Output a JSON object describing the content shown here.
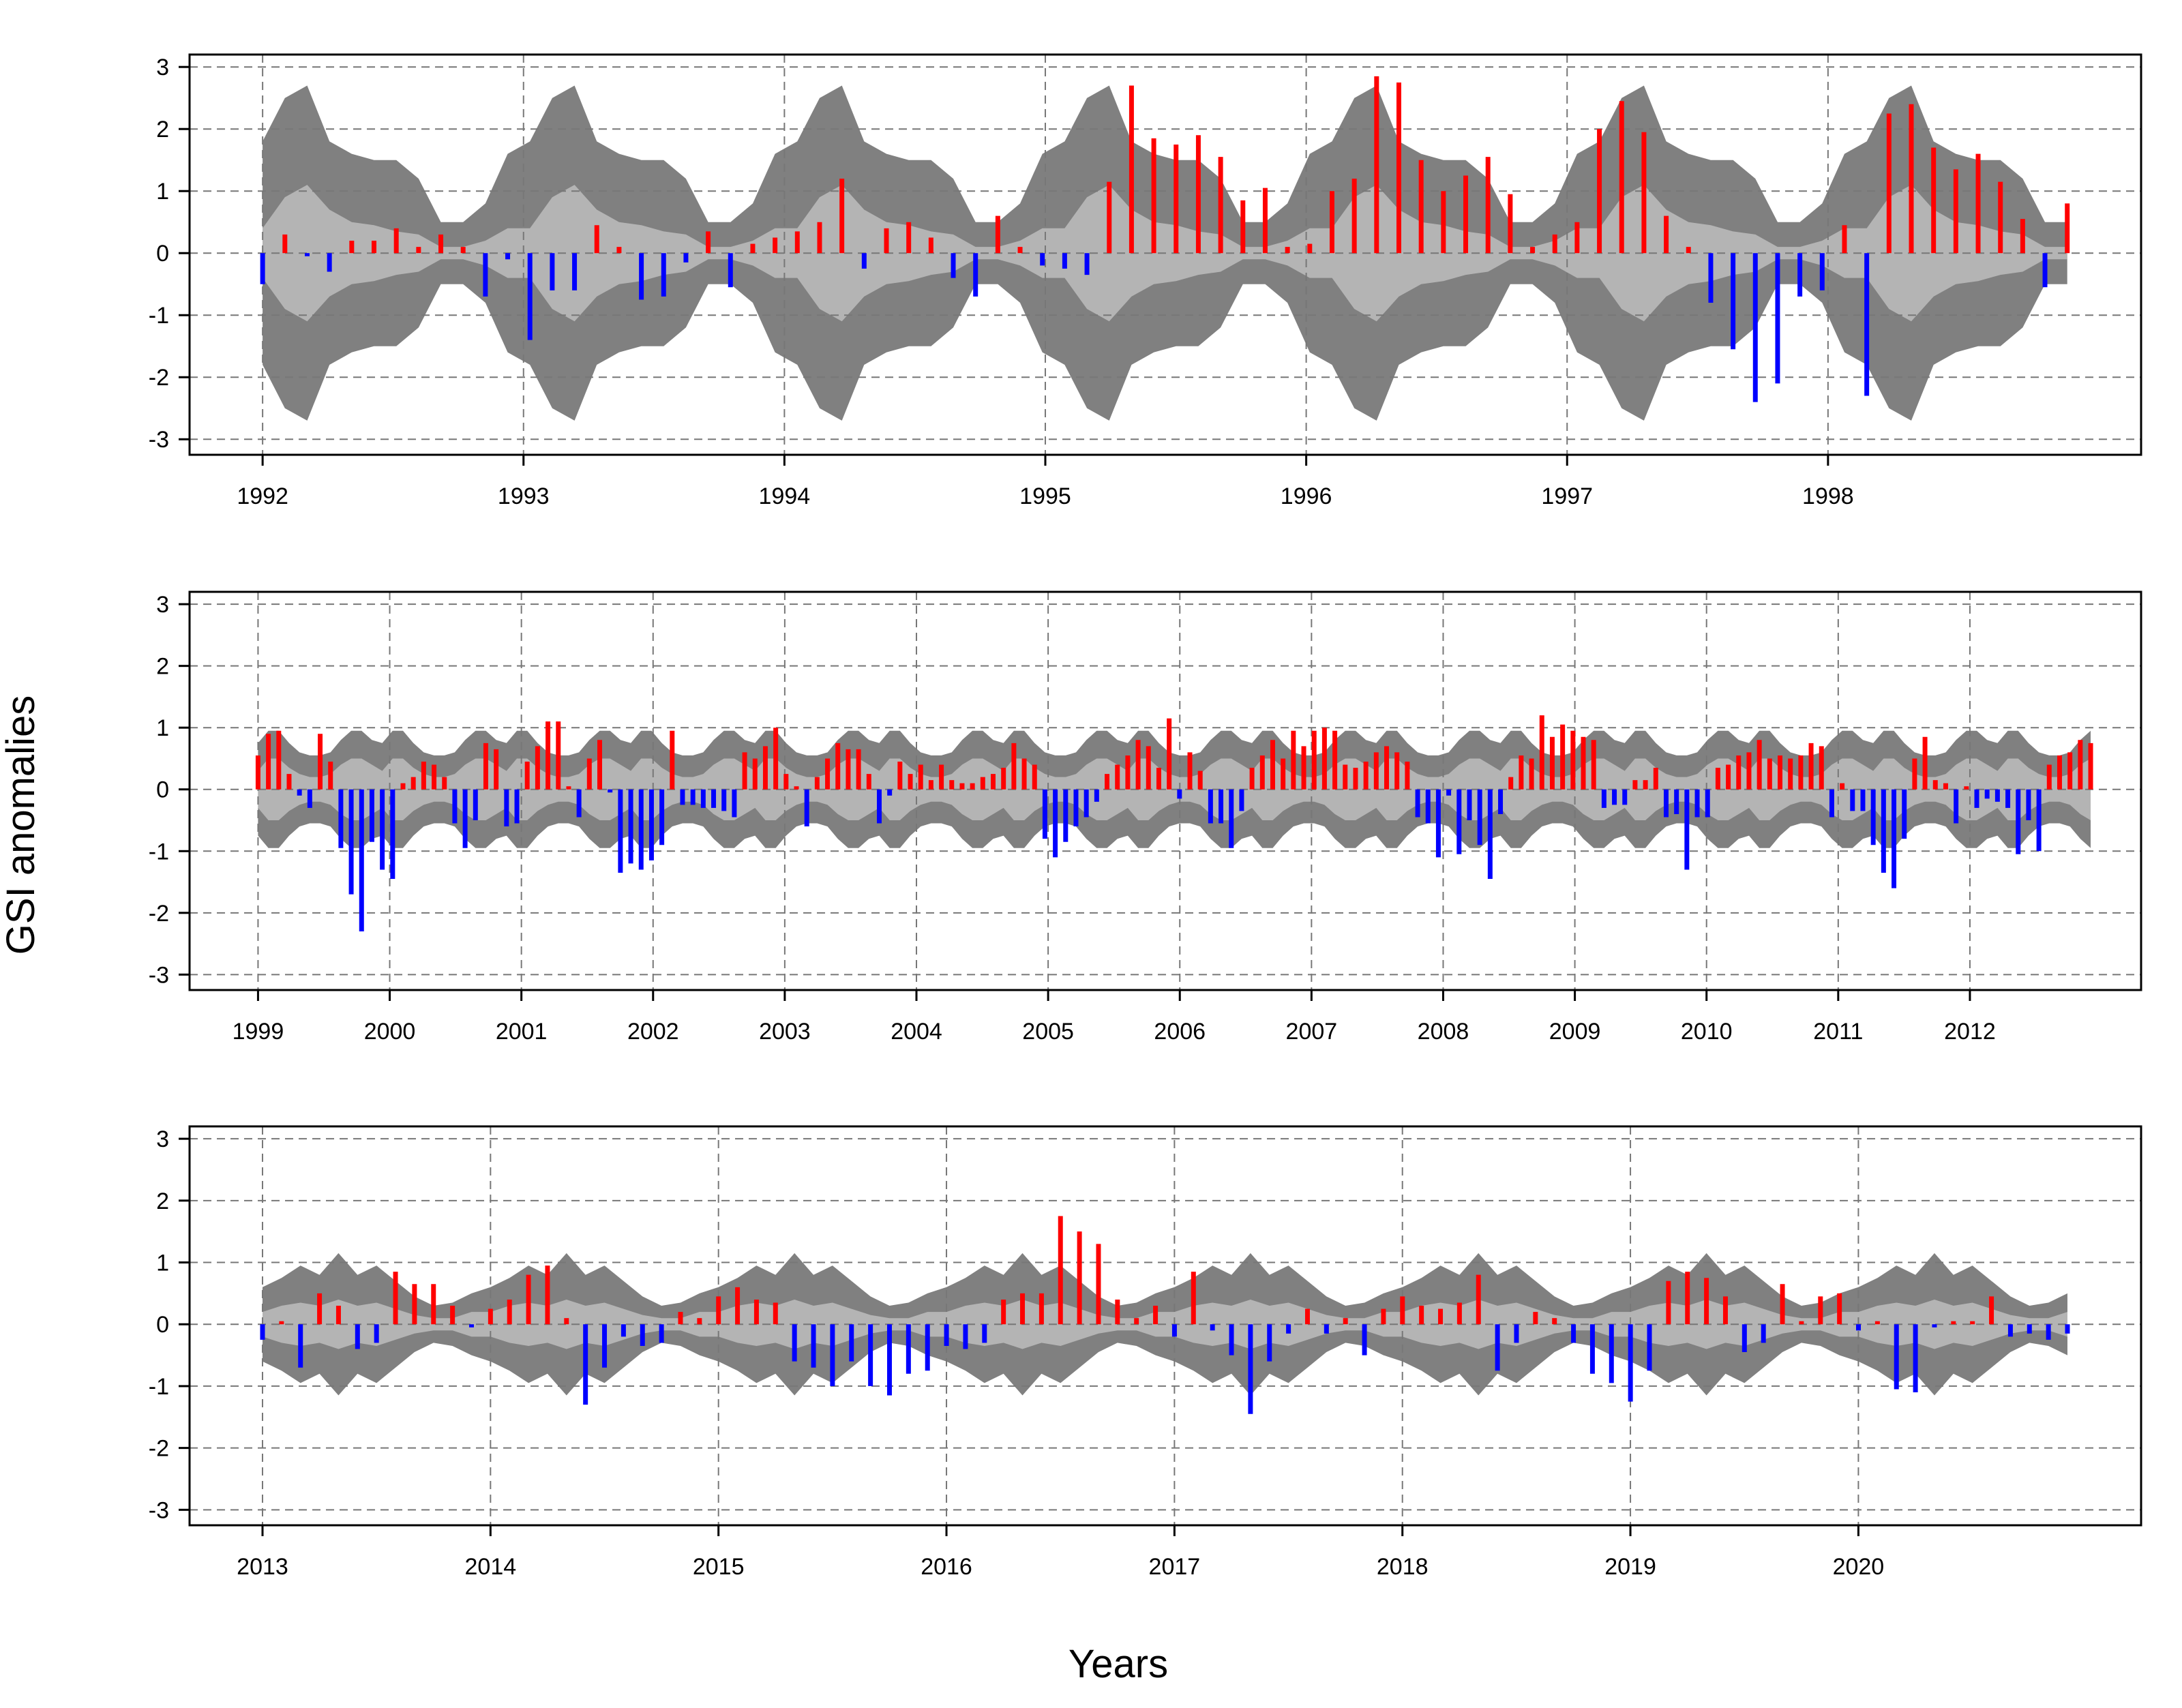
{
  "figure": {
    "ylabel": "GSI anomalies",
    "xlabel": "Years"
  },
  "colors": {
    "positive": "#ff0000",
    "negative": "#0000ff",
    "outer_band": "#808080",
    "inner_band": "#b4b4b4",
    "grid": "#777777"
  },
  "chart_data": [
    {
      "type": "bar",
      "x_start": 1992,
      "x_end": 1998.917,
      "xlim": [
        1991.72,
        1999.2
      ],
      "ylim": [
        -3.25,
        3.2
      ],
      "yticks": [
        -3,
        -2,
        -1,
        0,
        1,
        2,
        3
      ],
      "xticks": [
        1992,
        1993,
        1994,
        1995,
        1996,
        1997,
        1998
      ],
      "grid": true,
      "band_outer": [
        1.8,
        2.5,
        2.7,
        1.8,
        1.6,
        1.5,
        1.5,
        1.2,
        0.5,
        0.5,
        0.8,
        1.6,
        1.8,
        2.5,
        2.7,
        1.8,
        1.6,
        1.5,
        1.5,
        1.2,
        0.5,
        0.5,
        0.8,
        1.6,
        1.8,
        2.5,
        2.7,
        1.8,
        1.6,
        1.5,
        1.5,
        1.2,
        0.5,
        0.5,
        0.8,
        1.6,
        1.8,
        2.5,
        2.7,
        1.8,
        1.6,
        1.5,
        1.5,
        1.2,
        0.5,
        0.5,
        0.8,
        1.6,
        1.8,
        2.5,
        2.7,
        1.8,
        1.6,
        1.5,
        1.5,
        1.2,
        0.5,
        0.5,
        0.8,
        1.6,
        1.8,
        2.5,
        2.7,
        1.8,
        1.6,
        1.5,
        1.5,
        1.2,
        0.5,
        0.5,
        0.8,
        1.6,
        1.8,
        2.5,
        2.7,
        1.8,
        1.6,
        1.5,
        1.5,
        1.2,
        0.5,
        0.5,
        0.8
      ],
      "band_inner": [
        0.4,
        0.9,
        1.1,
        0.7,
        0.5,
        0.45,
        0.35,
        0.3,
        0.1,
        0.1,
        0.2,
        0.4,
        0.4,
        0.9,
        1.1,
        0.7,
        0.5,
        0.45,
        0.35,
        0.3,
        0.1,
        0.1,
        0.2,
        0.4,
        0.4,
        0.9,
        1.1,
        0.7,
        0.5,
        0.45,
        0.35,
        0.3,
        0.1,
        0.1,
        0.2,
        0.4,
        0.4,
        0.9,
        1.1,
        0.7,
        0.5,
        0.45,
        0.35,
        0.3,
        0.1,
        0.1,
        0.2,
        0.4,
        0.4,
        0.9,
        1.1,
        0.7,
        0.5,
        0.45,
        0.35,
        0.3,
        0.1,
        0.1,
        0.2,
        0.4,
        0.4,
        0.9,
        1.1,
        0.7,
        0.5,
        0.45,
        0.35,
        0.3,
        0.1,
        0.1,
        0.2,
        0.4,
        0.4,
        0.9,
        1.1,
        0.7,
        0.5,
        0.45,
        0.35,
        0.3,
        0.1,
        0.1,
        0.2
      ],
      "values": [
        -0.5,
        0.3,
        -0.05,
        -0.3,
        0.2,
        0.2,
        0.4,
        0.1,
        0.3,
        0.1,
        -0.7,
        -0.1,
        -1.4,
        -0.6,
        -0.6,
        0.45,
        0.1,
        -0.75,
        -0.7,
        -0.15,
        0.35,
        -0.55,
        0.15,
        0.25,
        0.35,
        0.5,
        1.2,
        -0.25,
        0.4,
        0.5,
        0.25,
        -0.4,
        -0.7,
        0.6,
        0.1,
        -0.2,
        -0.25,
        -0.35,
        1.15,
        2.7,
        1.85,
        1.75,
        1.9,
        1.55,
        0.85,
        1.05,
        0.1,
        0.15,
        1.0,
        1.2,
        2.85,
        2.75,
        1.5,
        1.0,
        1.25,
        1.55,
        0.95,
        0.1,
        0.3,
        0.5,
        2.0,
        2.45,
        1.95,
        0.6,
        0.1,
        -0.8,
        -1.55,
        -2.4,
        -2.1,
        -0.7,
        -0.6,
        0.45,
        -2.3,
        2.25,
        2.4,
        1.7,
        1.35,
        1.6,
        1.15,
        0.55,
        -0.55,
        0.8
      ]
    },
    {
      "type": "bar",
      "x_start": 1999,
      "x_end": 2012.917,
      "xlim": [
        1998.48,
        2013.3
      ],
      "ylim": [
        -3.25,
        3.2
      ],
      "yticks": [
        -3,
        -2,
        -1,
        0,
        1,
        2,
        3
      ],
      "xticks": [
        1999,
        2000,
        2001,
        2002,
        2003,
        2004,
        2005,
        2006,
        2007,
        2008,
        2009,
        2010,
        2011,
        2012
      ],
      "grid": true,
      "band_outer": [
        0.75,
        0.95,
        0.95,
        0.75,
        0.6,
        0.55,
        0.55,
        0.6,
        0.8,
        0.95,
        0.95,
        0.8
      ],
      "band_inner": [
        0.3,
        0.5,
        0.5,
        0.35,
        0.25,
        0.2,
        0.2,
        0.25,
        0.4,
        0.5,
        0.5,
        0.4
      ],
      "values": [
        0.55,
        0.9,
        0.95,
        0.25,
        -0.1,
        -0.3,
        0.9,
        0.45,
        -0.95,
        -1.7,
        -2.3,
        -0.85,
        -1.3,
        -1.45,
        0.1,
        0.2,
        0.45,
        0.4,
        0.2,
        -0.55,
        -0.95,
        -0.5,
        0.75,
        0.65,
        -0.6,
        -0.55,
        0.45,
        0.7,
        1.1,
        1.1,
        0.05,
        -0.45,
        0.5,
        0.8,
        -0.05,
        -1.35,
        -1.2,
        -1.3,
        -1.15,
        -0.9,
        0.95,
        -0.25,
        -0.25,
        -0.3,
        -0.3,
        -0.35,
        -0.45,
        0.6,
        0.5,
        0.7,
        1.0,
        0.25,
        0.05,
        -0.6,
        0.2,
        0.5,
        0.75,
        0.65,
        0.65,
        0.25,
        -0.55,
        -0.1,
        0.45,
        0.25,
        0.4,
        0.15,
        0.4,
        0.15,
        0.1,
        0.1,
        0.2,
        0.25,
        0.35,
        0.75,
        0.5,
        0.4,
        -0.8,
        -1.1,
        -0.85,
        -0.6,
        -0.45,
        -0.2,
        0.25,
        0.4,
        0.55,
        0.8,
        0.7,
        0.35,
        1.15,
        -0.15,
        0.6,
        0.3,
        -0.55,
        -0.55,
        -0.95,
        -0.35,
        0.35,
        0.55,
        0.8,
        0.5,
        0.95,
        0.7,
        0.95,
        1.0,
        0.95,
        0.4,
        0.35,
        0.45,
        0.6,
        0.7,
        0.6,
        0.45,
        -0.45,
        -0.55,
        -1.1,
        -0.1,
        -1.05,
        -0.5,
        -0.9,
        -1.45,
        -0.4,
        0.2,
        0.55,
        0.5,
        1.2,
        0.85,
        1.05,
        0.95,
        0.85,
        0.8,
        -0.3,
        -0.25,
        -0.25,
        0.15,
        0.15,
        0.35,
        -0.45,
        -0.4,
        -1.3,
        -0.45,
        -0.45,
        0.35,
        0.4,
        0.55,
        0.6,
        0.8,
        0.5,
        0.55,
        0.5,
        0.55,
        0.75,
        0.7,
        -0.45,
        0.1,
        -0.35,
        -0.35,
        -0.9,
        -1.35,
        -1.6,
        -0.8,
        0.5,
        0.85,
        0.15,
        0.1,
        -0.55,
        0.05,
        -0.3,
        -0.15,
        -0.2,
        -0.3,
        -1.05,
        -0.5,
        -1.0,
        0.4,
        0.55,
        0.6,
        0.8,
        0.75
      ]
    },
    {
      "type": "bar",
      "x_start": 2013,
      "x_end": 2020.917,
      "xlim": [
        2012.68,
        2021.24
      ],
      "ylim": [
        -3.25,
        3.2
      ],
      "yticks": [
        -3,
        -2,
        -1,
        0,
        1,
        2,
        3
      ],
      "xticks": [
        2013,
        2014,
        2015,
        2016,
        2017,
        2018,
        2019,
        2020
      ],
      "grid": true,
      "band_outer": [
        0.6,
        0.75,
        0.95,
        0.8,
        1.15,
        0.8,
        0.95,
        0.7,
        0.45,
        0.3,
        0.35,
        0.5
      ],
      "band_inner": [
        0.2,
        0.3,
        0.35,
        0.3,
        0.4,
        0.3,
        0.35,
        0.25,
        0.15,
        0.1,
        0.1,
        0.2
      ],
      "values": [
        -0.25,
        0.05,
        -0.7,
        0.5,
        0.3,
        -0.4,
        -0.3,
        0.85,
        0.65,
        0.65,
        0.3,
        -0.05,
        0.25,
        0.4,
        0.8,
        0.95,
        0.1,
        -1.3,
        -0.7,
        -0.2,
        -0.35,
        -0.3,
        0.2,
        0.1,
        0.45,
        0.6,
        0.4,
        0.35,
        -0.6,
        -0.7,
        -1.0,
        -0.6,
        -1.0,
        -1.15,
        -0.8,
        -0.75,
        -0.35,
        -0.4,
        -0.3,
        0.4,
        0.5,
        0.5,
        1.75,
        1.5,
        1.3,
        0.4,
        0.1,
        0.3,
        -0.2,
        0.85,
        -0.1,
        -0.5,
        -1.45,
        -0.6,
        -0.15,
        0.25,
        -0.15,
        0.1,
        -0.5,
        0.25,
        0.45,
        0.3,
        0.25,
        0.35,
        0.8,
        -0.75,
        -0.3,
        0.2,
        0.1,
        -0.3,
        -0.8,
        -0.95,
        -1.25,
        -0.75,
        0.7,
        0.85,
        0.75,
        0.45,
        -0.45,
        -0.3,
        0.65,
        0.05,
        0.45,
        0.5,
        -0.1,
        0.05,
        -1.05,
        -1.1,
        -0.05,
        0.05,
        0.05,
        0.45,
        -0.2,
        -0.15,
        -0.25,
        -0.15
      ]
    }
  ]
}
